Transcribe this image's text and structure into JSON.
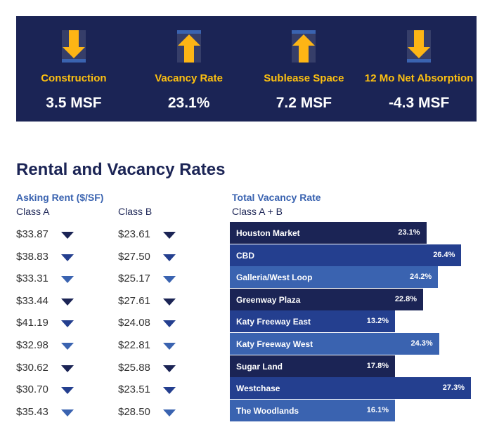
{
  "stats": [
    {
      "label": "Construction",
      "value": "3.5 MSF",
      "icon": "arrow-down-icon"
    },
    {
      "label": "Vacancy Rate",
      "value": "23.1%",
      "icon": "arrow-up-icon"
    },
    {
      "label": "Sublease Space",
      "value": "7.2 MSF",
      "icon": "arrow-up-icon"
    },
    {
      "label": "12 Mo Net Absorption",
      "value": "-4.3 MSF",
      "icon": "arrow-down-icon"
    }
  ],
  "title": "Rental and Vacancy Rates",
  "rent": {
    "heading": "Asking Rent ($/SF)",
    "class_a": "Class A",
    "class_b": "Class B",
    "rows": [
      {
        "a": "$33.87",
        "b": "$23.61"
      },
      {
        "a": "$38.83",
        "b": "$27.50"
      },
      {
        "a": "$33.31",
        "b": "$25.17"
      },
      {
        "a": "$33.44",
        "b": "$27.61"
      },
      {
        "a": "$41.19",
        "b": "$24.08"
      },
      {
        "a": "$32.98",
        "b": "$22.81"
      },
      {
        "a": "$30.62",
        "b": "$25.88"
      },
      {
        "a": "$30.70",
        "b": "$23.51"
      },
      {
        "a": "$35.43",
        "b": "$28.50"
      }
    ]
  },
  "vacancy": {
    "heading": "Total Vacancy Rate",
    "sub": "Class A + B",
    "bars": [
      {
        "name": "Houston Market",
        "value": 23.1,
        "label": "23.1%"
      },
      {
        "name": "CBD",
        "value": 26.4,
        "label": "26.4%"
      },
      {
        "name": "Galleria/West Loop",
        "value": 24.2,
        "label": "24.2%"
      },
      {
        "name": "Greenway Plaza",
        "value": 22.8,
        "label": "22.8%"
      },
      {
        "name": "Katy Freeway East",
        "value": 13.2,
        "label": "13.2%"
      },
      {
        "name": "Katy Freeway West",
        "value": 24.3,
        "label": "24.3%"
      },
      {
        "name": "Sugar Land",
        "value": 17.8,
        "label": "17.8%"
      },
      {
        "name": "Westchase",
        "value": 27.3,
        "label": "27.3%"
      },
      {
        "name": "The Woodlands",
        "value": 16.1,
        "label": "16.1%"
      }
    ]
  },
  "colors": [
    "#1b2455",
    "#243f8f",
    "#3a63b0"
  ],
  "accent": "#fdc010"
}
